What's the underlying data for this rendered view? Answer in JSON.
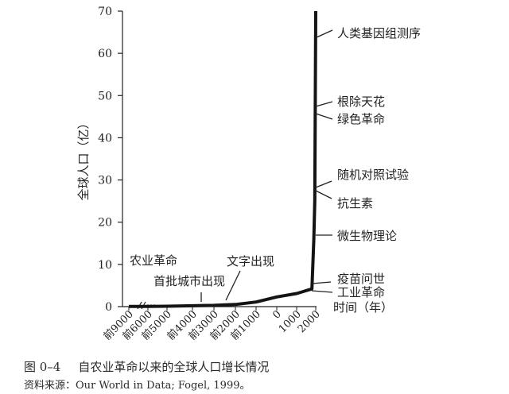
{
  "chart_data": {
    "type": "line",
    "title": "",
    "ylabel": "全球人口（亿）",
    "xlabel": "时间（年）",
    "ylim": [
      0,
      70
    ],
    "yticks": [
      0,
      10,
      20,
      30,
      40,
      50,
      60,
      70
    ],
    "xticks": [
      "前9000",
      "前6000",
      "前5000",
      "前4000",
      "前3000",
      "前2000",
      "前1000",
      "0",
      "1000",
      "2000"
    ],
    "series": [
      {
        "x": [
          -9000,
          -6000,
          -5000,
          -4000,
          -3000,
          -2000,
          -1000,
          0,
          1000,
          1800,
          1900,
          1950,
          2000
        ],
        "y": [
          0.04,
          0.05,
          0.1,
          0.2,
          0.3,
          0.5,
          1.1,
          2.3,
          3.1,
          4.2,
          16,
          25,
          70
        ]
      }
    ],
    "annotations": [
      {
        "text": "农业革命",
        "year": -9000
      },
      {
        "text": "首批城市出现",
        "year": -4000
      },
      {
        "text": "文字出现",
        "year": -3000
      },
      {
        "text": "工业革命",
        "year": 1800
      },
      {
        "text": "疫苗问世",
        "year": 1800
      },
      {
        "text": "微生物理论",
        "year": 1860
      },
      {
        "text": "抗生素",
        "year": 1928
      },
      {
        "text": "随机对照试验",
        "year": 1948
      },
      {
        "text": "绿色革命",
        "year": 1960
      },
      {
        "text": "根除天花",
        "year": 1980
      },
      {
        "text": "人类基因组测序",
        "year": 2003
      }
    ]
  },
  "figure_caption": {
    "number": "图 0–4",
    "text": "自农业革命以来的全球人口增长情况"
  },
  "source_note": "资料来源：Our World in Data; Fogel, 1999。"
}
